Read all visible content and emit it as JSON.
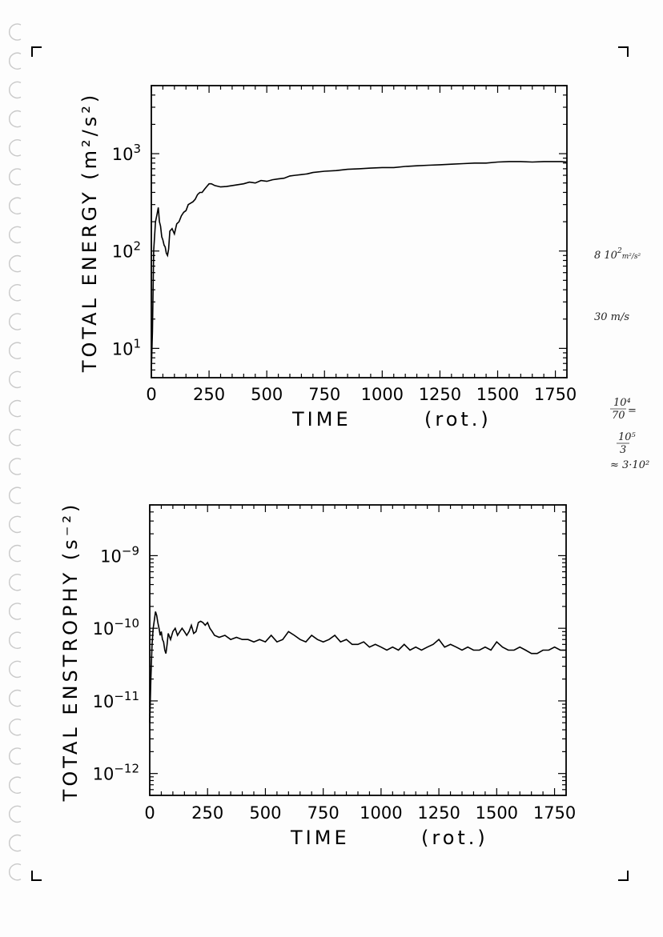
{
  "chart_data": [
    {
      "type": "line",
      "ylabel": "TOTAL ENERGY (m²/s²)",
      "xlabel": "TIME",
      "xlabel_unit": "(rot.)",
      "xlim": [
        0,
        1800
      ],
      "ylim": [
        5,
        5000
      ],
      "yscale": "log",
      "x_ticks": [
        "0",
        "250",
        "500",
        "750",
        "1000",
        "1250",
        "1500",
        "1750"
      ],
      "y_ticks": [
        {
          "base": "10",
          "exp": "3",
          "value": 1000
        },
        {
          "base": "10",
          "exp": "2",
          "value": 100
        },
        {
          "base": "10",
          "exp": "1",
          "value": 10
        }
      ],
      "grid": false,
      "series": [
        {
          "x": [
            0,
            5,
            10,
            18,
            25,
            30,
            35,
            40,
            45,
            50,
            55,
            60,
            65,
            70,
            75,
            80,
            90,
            100,
            110,
            120,
            130,
            140,
            150,
            160,
            170,
            180,
            190,
            200,
            210,
            220,
            230,
            240,
            250,
            260,
            275,
            300,
            325,
            350,
            375,
            400,
            425,
            450,
            475,
            500,
            525,
            550,
            575,
            600,
            625,
            650,
            675,
            700,
            750,
            800,
            850,
            900,
            950,
            1000,
            1050,
            1100,
            1150,
            1200,
            1250,
            1300,
            1350,
            1400,
            1450,
            1500,
            1550,
            1600,
            1650,
            1700,
            1750,
            1775,
            1800
          ],
          "values": [
            6,
            15,
            100,
            200,
            240,
            280,
            200,
            180,
            140,
            130,
            115,
            110,
            95,
            90,
            105,
            160,
            170,
            150,
            190,
            200,
            230,
            250,
            260,
            300,
            310,
            320,
            340,
            380,
            400,
            400,
            430,
            460,
            490,
            490,
            470,
            455,
            460,
            470,
            480,
            490,
            510,
            500,
            530,
            520,
            540,
            550,
            560,
            590,
            600,
            610,
            620,
            640,
            660,
            670,
            690,
            700,
            710,
            720,
            720,
            740,
            750,
            760,
            770,
            780,
            790,
            800,
            800,
            820,
            830,
            830,
            820,
            830,
            830,
            830,
            820
          ]
        }
      ]
    },
    {
      "type": "line",
      "ylabel": "TOTAL ENSTROPHY (s⁻²)",
      "xlabel": "TIME",
      "xlabel_unit": "(rot.)",
      "xlim": [
        0,
        1800
      ],
      "ylim": [
        5e-13,
        5e-09
      ],
      "yscale": "log",
      "x_ticks": [
        "0",
        "250",
        "500",
        "750",
        "1000",
        "1250",
        "1500",
        "1750"
      ],
      "y_ticks": [
        {
          "base": "10",
          "exp": "−9",
          "value": 1e-09
        },
        {
          "base": "10",
          "exp": "−10",
          "value": 1e-10
        },
        {
          "base": "10",
          "exp": "−11",
          "value": 1e-11
        },
        {
          "base": "10",
          "exp": "−12",
          "value": 1e-12
        }
      ],
      "grid": false,
      "series": [
        {
          "x": [
            0,
            5,
            10,
            15,
            20,
            25,
            30,
            35,
            40,
            45,
            50,
            55,
            60,
            65,
            70,
            75,
            80,
            90,
            100,
            110,
            120,
            130,
            140,
            150,
            160,
            170,
            180,
            190,
            200,
            210,
            220,
            230,
            240,
            250,
            260,
            270,
            280,
            300,
            325,
            350,
            375,
            400,
            425,
            450,
            475,
            500,
            525,
            550,
            575,
            600,
            625,
            650,
            675,
            700,
            725,
            750,
            775,
            800,
            825,
            850,
            875,
            900,
            925,
            950,
            975,
            1000,
            1025,
            1050,
            1075,
            1100,
            1125,
            1150,
            1175,
            1200,
            1225,
            1250,
            1275,
            1300,
            1325,
            1350,
            1375,
            1400,
            1425,
            1450,
            1475,
            1500,
            1525,
            1550,
            1575,
            1600,
            1625,
            1650,
            1675,
            1700,
            1725,
            1750,
            1775,
            1800
          ],
          "values": [
            5e-12,
            2e-11,
            6e-11,
            1e-10,
            1.3e-10,
            1.7e-10,
            1.5e-10,
            1.2e-10,
            1e-10,
            8e-11,
            9e-11,
            7e-11,
            6.5e-11,
            5e-11,
            4.5e-11,
            6e-11,
            8.5e-11,
            7e-11,
            9e-11,
            1e-10,
            8e-11,
            9e-11,
            1e-10,
            9e-11,
            8e-11,
            9e-11,
            1.1e-10,
            8.5e-11,
            9e-11,
            1.2e-10,
            1.25e-10,
            1.2e-10,
            1.1e-10,
            1.2e-10,
            1e-10,
            9e-11,
            8e-11,
            7.5e-11,
            8e-11,
            7e-11,
            7.5e-11,
            7e-11,
            7e-11,
            6.5e-11,
            7e-11,
            6.5e-11,
            8e-11,
            6.5e-11,
            7e-11,
            9e-11,
            8e-11,
            7e-11,
            6.5e-11,
            8e-11,
            7e-11,
            6.5e-11,
            7e-11,
            8e-11,
            6.5e-11,
            7e-11,
            6e-11,
            6e-11,
            6.5e-11,
            5.5e-11,
            6e-11,
            5.5e-11,
            5e-11,
            5.5e-11,
            5e-11,
            6e-11,
            5e-11,
            5.5e-11,
            5e-11,
            5.5e-11,
            6e-11,
            7e-11,
            5.5e-11,
            6e-11,
            5.5e-11,
            5e-11,
            5.5e-11,
            5e-11,
            5e-11,
            5.5e-11,
            5e-11,
            6.5e-11,
            5.5e-11,
            5e-11,
            5e-11,
            5.5e-11,
            5e-11,
            4.5e-11,
            4.5e-11,
            5e-11,
            5e-11,
            5.5e-11,
            5e-11,
            5e-11
          ]
        }
      ]
    }
  ],
  "annotations": {
    "line1": "8 10",
    "line1_sup": "2",
    "line1_unit": "m²/s²",
    "line2": "30 m/s",
    "frac1_num": "10⁴",
    "frac1_den": "70",
    "frac1_eq": "=",
    "frac2_num": "10⁵",
    "frac2_den": "3",
    "result": "≈ 3·10²"
  }
}
